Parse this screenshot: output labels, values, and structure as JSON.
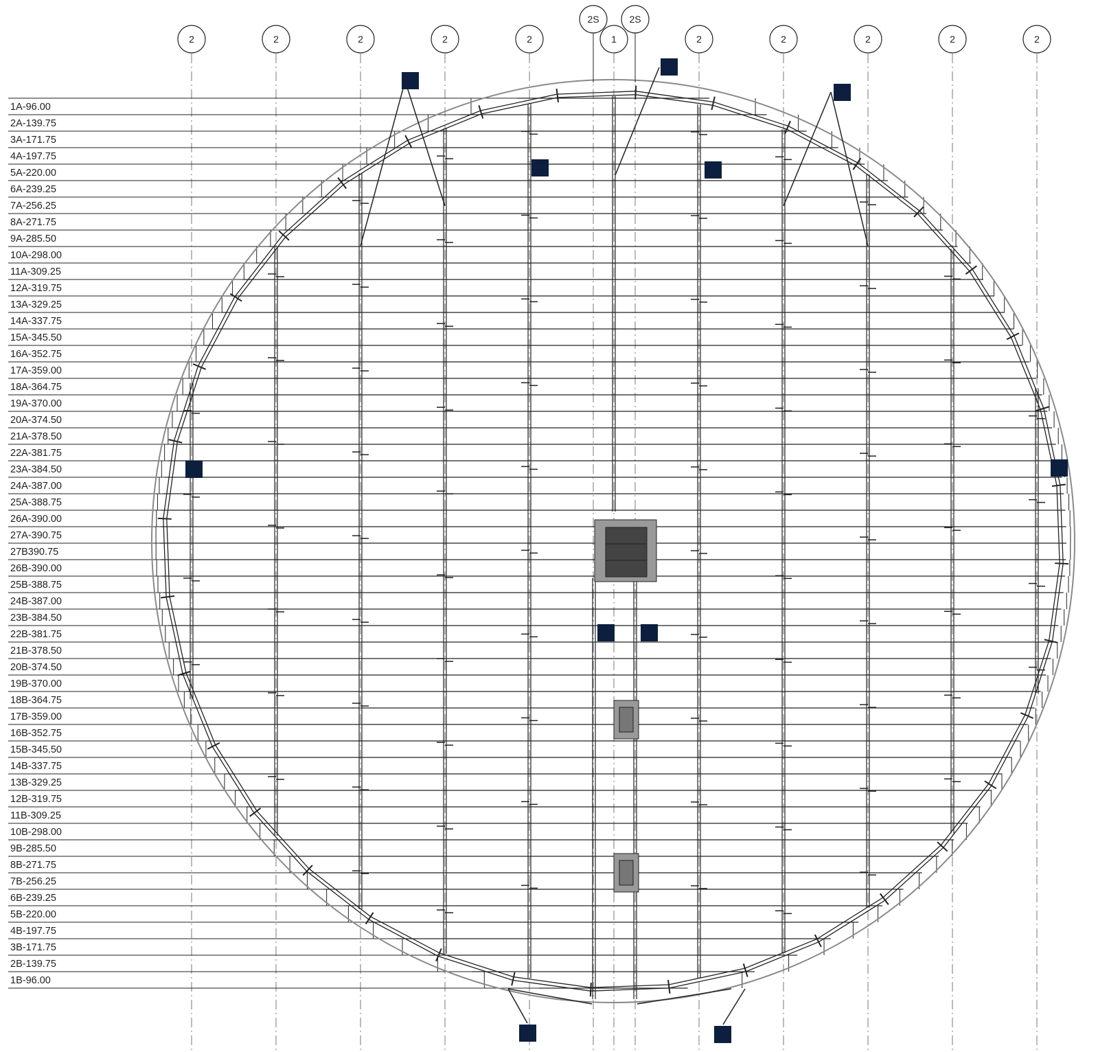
{
  "drawing": {
    "colors": {
      "line": "#222222",
      "outer_circle": "#8a8a8a",
      "support_block": "#0c1f3f",
      "inner_box": "#999999",
      "inner_box_core": "#444444",
      "grid_line": "#777777"
    },
    "column_bubbles": [
      "2",
      "2",
      "2",
      "2",
      "2",
      "2S",
      "1",
      "2S",
      "2",
      "2",
      "2",
      "2",
      "2"
    ],
    "row_labels": [
      "1A-96.00",
      "2A-139.75",
      "3A-171.75",
      "4A-197.75",
      "5A-220.00",
      "6A-239.25",
      "7A-256.25",
      "8A-271.75",
      "9A-285.50",
      "10A-298.00",
      "11A-309.25",
      "12A-319.75",
      "13A-329.25",
      "14A-337.75",
      "15A-345.50",
      "16A-352.75",
      "17A-359.00",
      "18A-364.75",
      "19A-370.00",
      "20A-374.50",
      "21A-378.50",
      "22A-381.75",
      "23A-384.50",
      "24A-387.00",
      "25A-388.75",
      "26A-390.00",
      "27A-390.75",
      "27B390.75",
      "26B-390.00",
      "25B-388.75",
      "24B-387.00",
      "23B-384.50",
      "22B-381.75",
      "21B-378.50",
      "20B-374.50",
      "19B-370.00",
      "18B-364.75",
      "17B-359.00",
      "16B-352.75",
      "15B-345.50",
      "14B-337.75",
      "13B-329.25",
      "12B-319.75",
      "11B-309.25",
      "10B-298.00",
      "9B-285.50",
      "8B-271.75",
      "7B-256.25",
      "6B-239.25",
      "5B-220.00",
      "4B-197.75",
      "3B-171.75",
      "2B-139.75",
      "1B-96.00"
    ]
  }
}
